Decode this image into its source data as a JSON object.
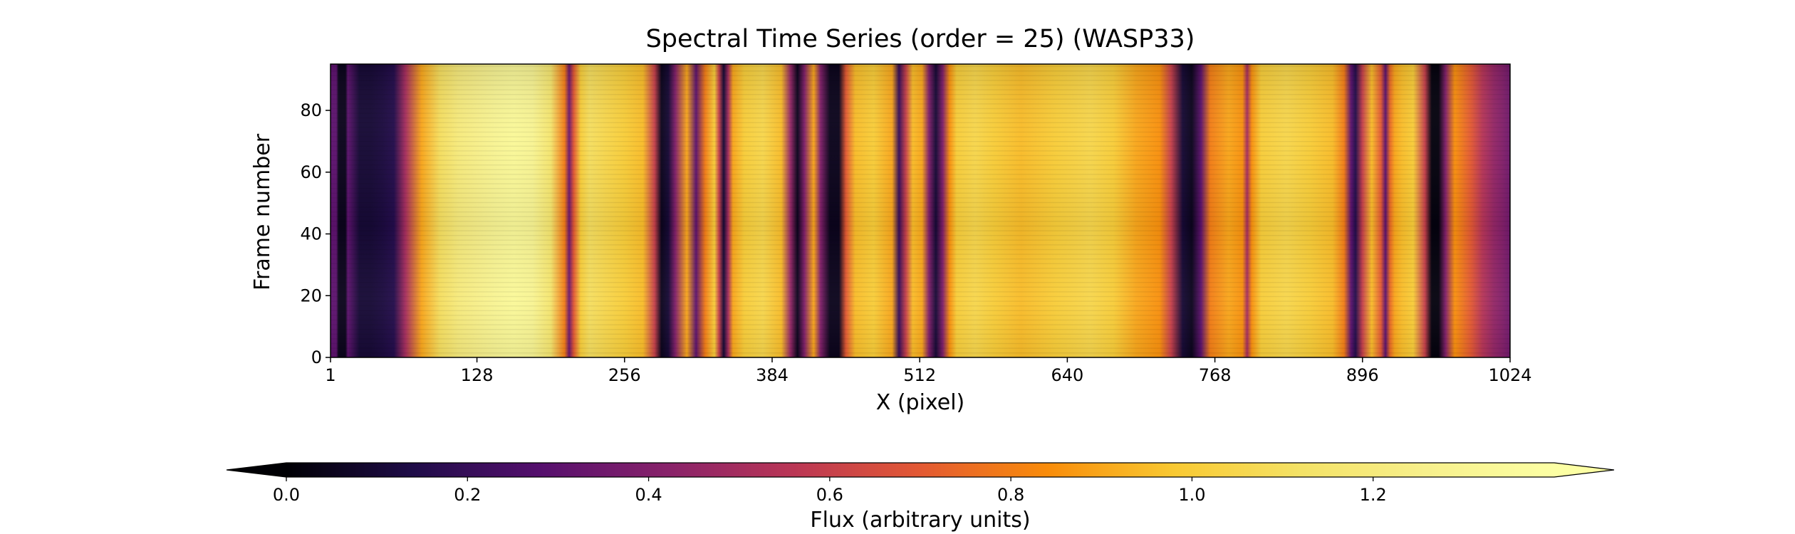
{
  "chart_data": {
    "type": "heatmap",
    "title": "Spectral Time Series (order = 25) (WASP33)",
    "xlabel": "X (pixel)",
    "ylabel": "Frame number",
    "xlim": [
      1,
      1024
    ],
    "ylim": [
      0,
      95
    ],
    "x_ticks": [
      1,
      128,
      256,
      384,
      512,
      640,
      768,
      896,
      1024
    ],
    "y_ticks": [
      0,
      20,
      40,
      60,
      80
    ],
    "colormap": "inferno",
    "colorbar": {
      "label": "Flux (arbitrary units)",
      "min": 0.0,
      "max": 1.4,
      "ticks": [
        "0.0",
        "0.2",
        "0.4",
        "0.6",
        "0.8",
        "1.0",
        "1.2"
      ],
      "tick_values": [
        0.0,
        0.2,
        0.4,
        0.6,
        0.8,
        1.0,
        1.2
      ],
      "extend": "both",
      "orientation": "horizontal"
    },
    "flux_profile": {
      "x": [
        1,
        6,
        8,
        14,
        16,
        26,
        36,
        46,
        56,
        66,
        80,
        96,
        112,
        128,
        144,
        160,
        176,
        192,
        204,
        208,
        212,
        218,
        226,
        240,
        256,
        272,
        282,
        288,
        294,
        300,
        310,
        318,
        326,
        334,
        338,
        342,
        346,
        350,
        360,
        376,
        392,
        400,
        406,
        412,
        420,
        426,
        434,
        442,
        448,
        456,
        472,
        488,
        494,
        500,
        506,
        514,
        520,
        526,
        532,
        538,
        544,
        560,
        576,
        600,
        630,
        660,
        680,
        700,
        720,
        730,
        740,
        748,
        756,
        764,
        780,
        792,
        796,
        800,
        808,
        830,
        850,
        870,
        880,
        886,
        890,
        896,
        904,
        912,
        916,
        920,
        924,
        930,
        940,
        950,
        956,
        962,
        968,
        976,
        990,
        1000,
        1010,
        1018,
        1024
      ],
      "flux": [
        0.3,
        0.3,
        0.05,
        0.05,
        0.3,
        0.1,
        0.1,
        0.12,
        0.15,
        0.5,
        0.9,
        1.1,
        1.2,
        1.25,
        1.3,
        1.33,
        1.3,
        1.15,
        0.8,
        0.35,
        0.7,
        1.0,
        1.1,
        1.05,
        1.0,
        0.95,
        0.6,
        0.05,
        0.1,
        0.4,
        0.9,
        0.3,
        0.8,
        1.0,
        0.6,
        0.1,
        0.5,
        0.9,
        1.0,
        1.05,
        0.95,
        0.45,
        0.05,
        0.4,
        0.9,
        0.4,
        0.05,
        0.05,
        0.7,
        0.95,
        1.0,
        0.9,
        0.2,
        0.6,
        0.95,
        0.9,
        0.4,
        0.1,
        0.4,
        0.85,
        1.0,
        1.05,
        1.0,
        0.95,
        1.0,
        1.05,
        1.0,
        0.9,
        0.85,
        0.6,
        0.1,
        0.05,
        0.3,
        0.8,
        0.9,
        0.85,
        0.5,
        0.85,
        1.0,
        1.05,
        1.0,
        0.95,
        0.8,
        0.3,
        0.15,
        0.6,
        0.95,
        0.7,
        0.3,
        0.75,
        0.9,
        0.95,
        1.0,
        0.6,
        0.02,
        0.02,
        0.4,
        0.85,
        0.7,
        0.55,
        0.45,
        0.4,
        0.35
      ]
    }
  }
}
